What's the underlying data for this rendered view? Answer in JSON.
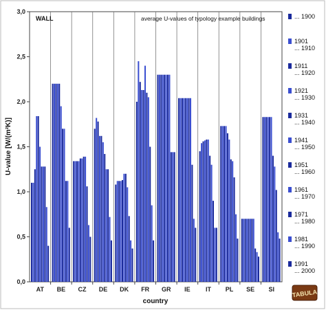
{
  "chart_data": {
    "type": "bar",
    "title": "WALL",
    "subtitle": "average U-values of typology example buildings",
    "ylabel": "U-value [W/(m²K)]",
    "xlabel": "country",
    "ylim": [
      0,
      3.0
    ],
    "yticks": [
      "0,0",
      "0,5",
      "1,0",
      "1,5",
      "2,0",
      "2,5",
      "3,0"
    ],
    "grid": "vertical separators between countries",
    "legend_position": "right",
    "categories": [
      "AT",
      "BE",
      "CZ",
      "DE",
      "DK",
      "FR",
      "GR",
      "IE",
      "IT",
      "PL",
      "SE",
      "SI"
    ],
    "series": [
      {
        "name": "... 1900",
        "color": "#1a2a9c",
        "values": [
          1.1,
          2.2,
          1.34,
          1.7,
          1.08,
          2.0,
          2.3,
          2.04,
          1.45,
          1.73,
          0.7,
          1.83
        ]
      },
      {
        "name": "1901 ... 1910",
        "color": "#3a4ed0",
        "values": [
          1.1,
          2.2,
          1.34,
          1.82,
          1.12,
          2.45,
          2.3,
          2.04,
          1.54,
          1.73,
          0.7,
          1.83
        ]
      },
      {
        "name": "1911 ... 1920",
        "color": "#1a2a9c",
        "values": [
          1.25,
          2.2,
          1.34,
          1.78,
          1.12,
          2.22,
          2.3,
          2.04,
          1.56,
          1.73,
          0.7,
          1.83
        ]
      },
      {
        "name": "1921 ... 1930",
        "color": "#3a4ed0",
        "values": [
          1.84,
          2.2,
          1.34,
          1.62,
          1.12,
          2.13,
          2.3,
          2.04,
          1.57,
          1.73,
          0.7,
          1.83
        ]
      },
      {
        "name": "1931 ... 1940",
        "color": "#1a2a9c",
        "values": [
          1.84,
          2.2,
          1.37,
          1.62,
          1.13,
          2.13,
          2.3,
          2.04,
          1.58,
          1.65,
          0.7,
          1.83
        ]
      },
      {
        "name": "1941 ... 1950",
        "color": "#3a4ed0",
        "values": [
          1.5,
          1.95,
          1.37,
          1.55,
          1.2,
          2.4,
          2.3,
          2.04,
          1.58,
          1.58,
          0.7,
          1.83
        ]
      },
      {
        "name": "1951 ... 1960",
        "color": "#1a2a9c",
        "values": [
          1.28,
          1.7,
          1.39,
          1.42,
          1.2,
          2.1,
          2.3,
          2.04,
          1.4,
          1.36,
          0.7,
          1.4
        ]
      },
      {
        "name": "1961 ... 1970",
        "color": "#3a4ed0",
        "values": [
          1.28,
          1.7,
          1.39,
          1.25,
          1.05,
          2.05,
          2.3,
          2.04,
          1.3,
          1.34,
          0.7,
          1.28
        ]
      },
      {
        "name": "1971 ... 1980",
        "color": "#1a2a9c",
        "values": [
          1.28,
          1.12,
          1.06,
          1.25,
          0.73,
          1.5,
          1.44,
          1.3,
          0.9,
          1.16,
          0.37,
          1.02
        ]
      },
      {
        "name": "1981 ... 1990",
        "color": "#3a4ed0",
        "values": [
          0.83,
          1.12,
          0.63,
          0.72,
          0.46,
          0.85,
          1.44,
          0.7,
          0.6,
          0.75,
          0.33,
          0.55
        ]
      },
      {
        "name": "1991 ... 2000",
        "color": "#1a2a9c",
        "values": [
          0.4,
          0.6,
          0.5,
          0.46,
          0.37,
          0.46,
          1.44,
          0.6,
          0.6,
          0.48,
          0.28,
          0.48
        ]
      }
    ],
    "legend": [
      {
        "line1": "",
        "line2": "... 1900"
      },
      {
        "line1": "1901",
        "line2": "... 1910"
      },
      {
        "line1": "1911",
        "line2": "... 1920"
      },
      {
        "line1": "1921",
        "line2": "... 1930"
      },
      {
        "line1": "1931",
        "line2": "... 1940"
      },
      {
        "line1": "1941",
        "line2": "... 1950"
      },
      {
        "line1": "1951",
        "line2": "... 1960"
      },
      {
        "line1": "1961",
        "line2": "... 1970"
      },
      {
        "line1": "1971",
        "line2": "... 1980"
      },
      {
        "line1": "1981",
        "line2": "... 1990"
      },
      {
        "line1": "1991",
        "line2": "... 2000"
      }
    ]
  },
  "logo": {
    "text": "TABULA"
  },
  "colors": {
    "dark_bar": "#1a2a9c",
    "light_bar": "#3a4ed0",
    "frame": "#bbbbbb",
    "logo_bg": "#7a3a14"
  }
}
